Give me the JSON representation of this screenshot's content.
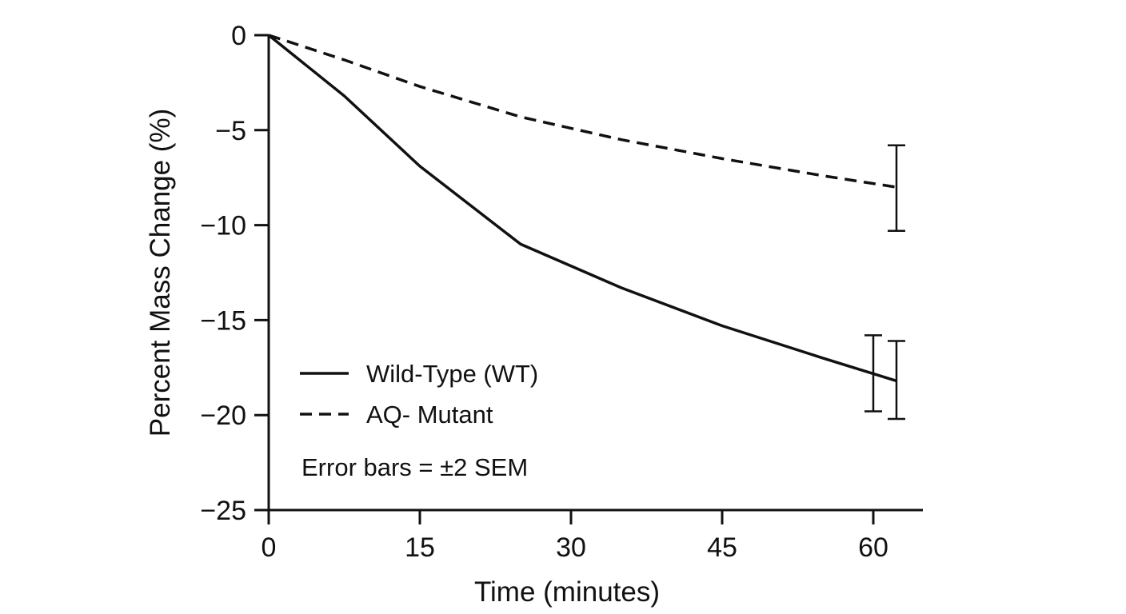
{
  "chart_data": {
    "type": "line",
    "xlabel": "Time (minutes)",
    "ylabel": "Percent Mass Change (%)",
    "xlim": [
      0,
      65
    ],
    "ylim": [
      -25,
      0
    ],
    "x_ticks": [
      0,
      15,
      30,
      45,
      60
    ],
    "x_tick_labels": [
      "0",
      "15",
      "30",
      "45",
      "60"
    ],
    "y_ticks": [
      0,
      -5,
      -10,
      -15,
      -20,
      -25
    ],
    "y_tick_labels": [
      "0",
      "−5",
      "−10",
      "−15",
      "−20",
      "−25"
    ],
    "grid": false,
    "legend_placement": "bottom-left",
    "series": [
      {
        "name": "Wild-Type (WT)",
        "style": "solid",
        "color": "#111111",
        "points": [
          [
            0,
            0
          ],
          [
            7.5,
            -3.2
          ],
          [
            15,
            -6.9
          ],
          [
            25,
            -11.0
          ],
          [
            35,
            -13.3
          ],
          [
            45,
            -15.3
          ],
          [
            55,
            -17.0
          ],
          [
            62.3,
            -18.2
          ]
        ]
      },
      {
        "name": "AQ- Mutant",
        "style": "dashed",
        "color": "#111111",
        "points": [
          [
            0,
            0
          ],
          [
            7.5,
            -1.3
          ],
          [
            15,
            -2.7
          ],
          [
            25,
            -4.3
          ],
          [
            35,
            -5.5
          ],
          [
            45,
            -6.5
          ],
          [
            55,
            -7.4
          ],
          [
            62.3,
            -8.0
          ]
        ]
      }
    ],
    "error_bars": [
      {
        "x": 60.0,
        "low": -19.8,
        "high": -15.8
      },
      {
        "x": 62.3,
        "low": -20.2,
        "high": -16.1
      },
      {
        "x": 62.3,
        "low": -10.3,
        "high": -5.8
      }
    ],
    "annotation": "Error bars = ±2 SEM"
  }
}
